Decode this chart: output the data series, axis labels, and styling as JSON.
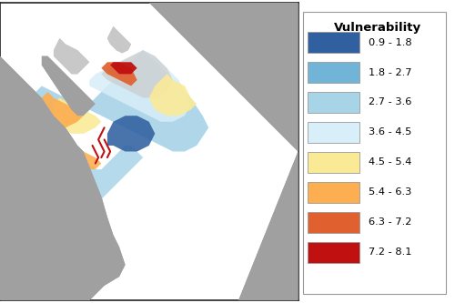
{
  "legend_title": "Vulnerability",
  "legend_entries": [
    {
      "label": "0.9 - 1.8",
      "color": "#3060A0"
    },
    {
      "label": "1.8 - 2.7",
      "color": "#72B4D8"
    },
    {
      "label": "2.7 - 3.6",
      "color": "#A8D4E8"
    },
    {
      "label": "3.6 - 4.5",
      "color": "#D8EEF8"
    },
    {
      "label": "4.5 - 5.4",
      "color": "#FAEA96"
    },
    {
      "label": "5.4 - 6.3",
      "color": "#FDAE50"
    },
    {
      "label": "6.3 - 7.2",
      "color": "#E06030"
    },
    {
      "label": "7.2 - 8.1",
      "color": "#C01010"
    }
  ],
  "bg_color": "#FFFFFF",
  "land_color": "#A0A0A0",
  "land_light_color": "#C8C8C8",
  "ocean_bg": "#FFFFFF",
  "ice_center_color": "#CCCCCC",
  "border_color": "#222222",
  "legend_border": "#999999",
  "fig_width": 5.0,
  "fig_height": 3.33,
  "fig_dpi": 100
}
